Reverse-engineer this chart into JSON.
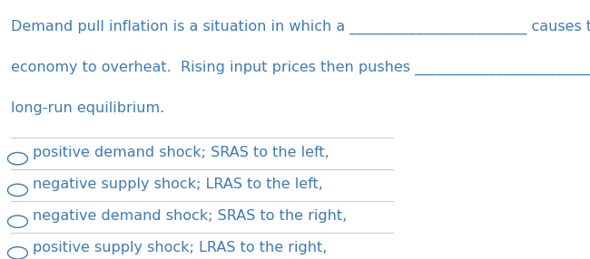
{
  "background_color": "#ffffff",
  "text_color": "#3d7ab5",
  "line_color": "#cccccc",
  "question_line1": "Demand pull inflation is a situation in which a ________________________ causes the",
  "question_line2": "economy to overheat.  Rising input prices then pushes ________________________back to",
  "question_line3": "long-run equilibrium.",
  "options": [
    "positive demand shock; SRAS to the left,",
    "negative supply shock; LRAS to the left,",
    "negative demand shock; SRAS to the right,",
    "positive supply shock; LRAS to the right,"
  ],
  "font_size_question": 11.5,
  "font_size_options": 11.5,
  "figsize": [
    6.5,
    2.86
  ],
  "dpi": 100
}
